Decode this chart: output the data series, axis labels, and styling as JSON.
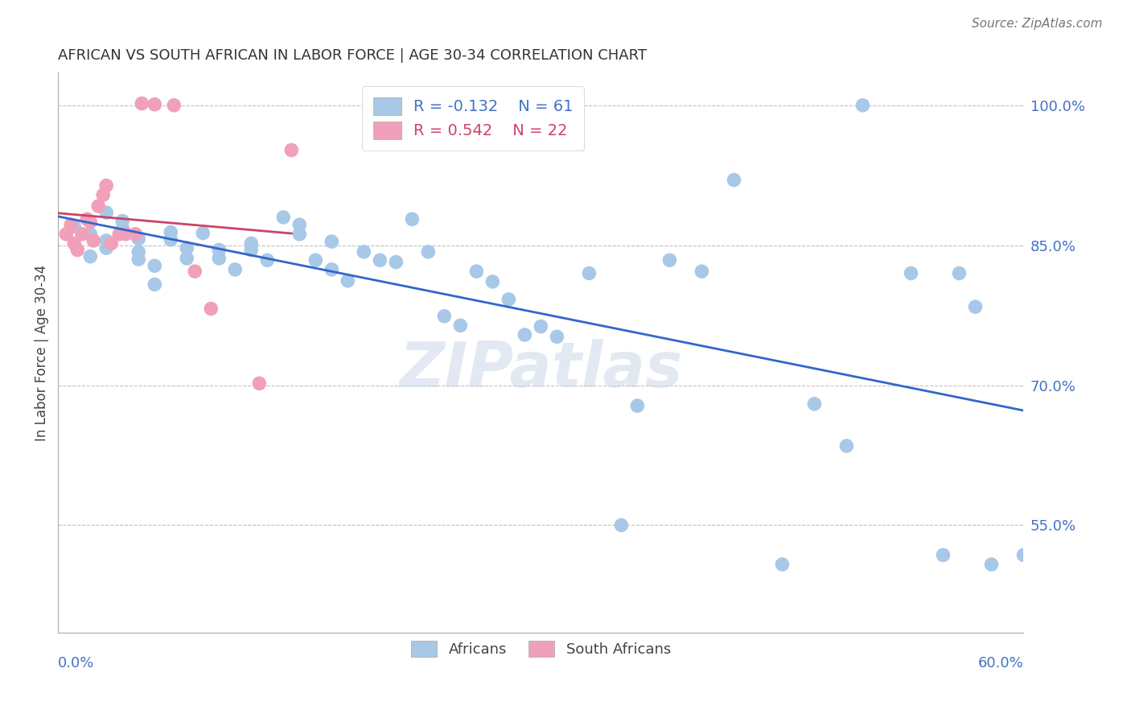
{
  "title": "AFRICAN VS SOUTH AFRICAN IN LABOR FORCE | AGE 30-34 CORRELATION CHART",
  "source": "Source: ZipAtlas.com",
  "ylabel": "In Labor Force | Age 30-34",
  "y_tick_labels": [
    "100.0%",
    "85.0%",
    "70.0%",
    "55.0%"
  ],
  "y_tick_values": [
    1.0,
    0.85,
    0.7,
    0.55
  ],
  "x_min": 0.0,
  "x_max": 0.6,
  "y_min": 0.435,
  "y_max": 1.035,
  "legend_blue_r": "-0.132",
  "legend_blue_n": "61",
  "legend_pink_r": "0.542",
  "legend_pink_n": "22",
  "blue_color": "#a8c8e8",
  "pink_color": "#f0a0b8",
  "blue_line_color": "#3366cc",
  "pink_line_color": "#cc4466",
  "watermark": "ZIPatlas",
  "blue_x": [
    0.01,
    0.02,
    0.02,
    0.03,
    0.03,
    0.03,
    0.04,
    0.04,
    0.04,
    0.05,
    0.05,
    0.05,
    0.06,
    0.06,
    0.07,
    0.07,
    0.08,
    0.08,
    0.09,
    0.1,
    0.1,
    0.11,
    0.12,
    0.12,
    0.13,
    0.14,
    0.15,
    0.15,
    0.16,
    0.17,
    0.17,
    0.18,
    0.19,
    0.2,
    0.21,
    0.22,
    0.23,
    0.24,
    0.25,
    0.26,
    0.27,
    0.28,
    0.29,
    0.3,
    0.31,
    0.33,
    0.35,
    0.36,
    0.38,
    0.4,
    0.42,
    0.45,
    0.47,
    0.49,
    0.5,
    0.53,
    0.55,
    0.56,
    0.57,
    0.58,
    0.6
  ],
  "blue_y": [
    0.87,
    0.862,
    0.838,
    0.885,
    0.855,
    0.847,
    0.868,
    0.876,
    0.863,
    0.857,
    0.843,
    0.835,
    0.828,
    0.808,
    0.856,
    0.864,
    0.836,
    0.847,
    0.863,
    0.836,
    0.845,
    0.824,
    0.845,
    0.852,
    0.834,
    0.88,
    0.862,
    0.872,
    0.834,
    0.854,
    0.824,
    0.812,
    0.843,
    0.834,
    0.832,
    0.878,
    0.843,
    0.774,
    0.764,
    0.822,
    0.811,
    0.792,
    0.754,
    0.763,
    0.752,
    0.82,
    0.55,
    0.678,
    0.834,
    0.822,
    0.92,
    0.508,
    0.68,
    0.635,
    1.0,
    0.82,
    0.518,
    0.82,
    0.784,
    0.508,
    0.518
  ],
  "pink_x": [
    0.005,
    0.008,
    0.01,
    0.012,
    0.015,
    0.018,
    0.02,
    0.022,
    0.025,
    0.028,
    0.03,
    0.033,
    0.038,
    0.042,
    0.048,
    0.052,
    0.06,
    0.072,
    0.085,
    0.095,
    0.125,
    0.145
  ],
  "pink_y": [
    0.862,
    0.872,
    0.852,
    0.845,
    0.862,
    0.878,
    0.875,
    0.855,
    0.892,
    0.904,
    0.914,
    0.852,
    0.862,
    0.862,
    0.862,
    1.002,
    1.001,
    1.0,
    0.822,
    0.782,
    0.702,
    0.952
  ]
}
